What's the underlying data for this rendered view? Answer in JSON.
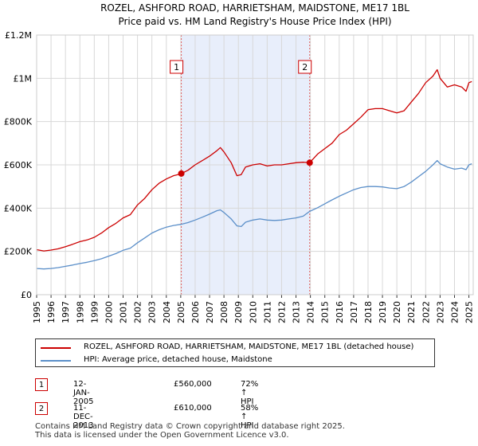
{
  "chart_data": {
    "type": "line",
    "title": "ROZEL, ASHFORD ROAD, HARRIETSHAM, MAIDSTONE, ME17 1BL",
    "subtitle": "Price paid vs. HM Land Registry's House Price Index (HPI)",
    "xlabel": "",
    "ylabel": "",
    "xlim": [
      1995.0,
      2025.3
    ],
    "ylim": [
      0,
      1200000
    ],
    "ytick_values": [
      0,
      200000,
      400000,
      600000,
      800000,
      1000000,
      1200000
    ],
    "ytick_labels": [
      "£0",
      "£200K",
      "£400K",
      "£600K",
      "£800K",
      "£1M",
      "£1.2M"
    ],
    "xtick_labels": [
      "1995",
      "1996",
      "1997",
      "1998",
      "1999",
      "2000",
      "2001",
      "2002",
      "2003",
      "2004",
      "2005",
      "2006",
      "2007",
      "2008",
      "2009",
      "2010",
      "2011",
      "2012",
      "2013",
      "2014",
      "2015",
      "2016",
      "2017",
      "2018",
      "2019",
      "2020",
      "2021",
      "2022",
      "2023",
      "2024",
      "2025"
    ],
    "grid": true,
    "shaded_region": [
      2005.04,
      2013.95
    ],
    "series": [
      {
        "name": "ROZEL, ASHFORD ROAD, HARRIETSHAM, MAIDSTONE, ME17 1BL (detached house)",
        "color": "#cc0000",
        "x": [
          1995.0,
          1995.5,
          1996.0,
          1996.5,
          1997.0,
          1997.5,
          1998.0,
          1998.5,
          1999.0,
          1999.5,
          2000.0,
          2000.5,
          2001.0,
          2001.5,
          2002.0,
          2002.5,
          2003.0,
          2003.5,
          2004.0,
          2004.5,
          2005.0,
          2005.04,
          2005.5,
          2006.0,
          2006.5,
          2007.0,
          2007.5,
          2007.75,
          2008.0,
          2008.5,
          2008.9,
          2009.2,
          2009.5,
          2010.0,
          2010.5,
          2011.0,
          2011.5,
          2012.0,
          2012.5,
          2013.0,
          2013.5,
          2013.95,
          2014.5,
          2015.0,
          2015.5,
          2016.0,
          2016.5,
          2017.0,
          2017.5,
          2018.0,
          2018.5,
          2019.0,
          2019.5,
          2020.0,
          2020.5,
          2021.0,
          2021.5,
          2022.0,
          2022.5,
          2022.8,
          2023.0,
          2023.5,
          2024.0,
          2024.5,
          2024.8,
          2025.0,
          2025.2
        ],
        "values": [
          208000,
          202000,
          206000,
          212000,
          222000,
          233000,
          245000,
          253000,
          265000,
          285000,
          310000,
          330000,
          355000,
          370000,
          415000,
          445000,
          485000,
          515000,
          535000,
          550000,
          558000,
          560000,
          575000,
          600000,
          620000,
          640000,
          665000,
          680000,
          660000,
          610000,
          550000,
          555000,
          590000,
          600000,
          605000,
          595000,
          600000,
          600000,
          605000,
          610000,
          612000,
          610000,
          650000,
          675000,
          700000,
          740000,
          760000,
          790000,
          820000,
          855000,
          860000,
          860000,
          850000,
          840000,
          850000,
          890000,
          930000,
          980000,
          1010000,
          1040000,
          1000000,
          960000,
          970000,
          960000,
          940000,
          980000,
          985000
        ]
      },
      {
        "name": "HPI: Average price, detached house, Maidstone",
        "color": "#5b8fc9",
        "x": [
          1995.0,
          1995.5,
          1996.0,
          1996.5,
          1997.0,
          1997.5,
          1998.0,
          1998.5,
          1999.0,
          1999.5,
          2000.0,
          2000.5,
          2001.0,
          2001.5,
          2002.0,
          2002.5,
          2003.0,
          2003.5,
          2004.0,
          2004.5,
          2005.0,
          2005.5,
          2006.0,
          2006.5,
          2007.0,
          2007.5,
          2007.75,
          2008.0,
          2008.5,
          2008.9,
          2009.2,
          2009.5,
          2010.0,
          2010.5,
          2011.0,
          2011.5,
          2012.0,
          2012.5,
          2013.0,
          2013.5,
          2013.95,
          2014.5,
          2015.0,
          2015.5,
          2016.0,
          2016.5,
          2017.0,
          2017.5,
          2018.0,
          2018.5,
          2019.0,
          2019.5,
          2020.0,
          2020.5,
          2021.0,
          2021.5,
          2022.0,
          2022.5,
          2022.8,
          2023.0,
          2023.5,
          2024.0,
          2024.5,
          2024.8,
          2025.0,
          2025.2
        ],
        "values": [
          121000,
          119000,
          121000,
          125000,
          131000,
          137000,
          144000,
          150000,
          157000,
          166000,
          178000,
          190000,
          205000,
          215000,
          240000,
          262000,
          285000,
          300000,
          312000,
          320000,
          325000,
          333000,
          345000,
          358000,
          372000,
          388000,
          392000,
          380000,
          350000,
          318000,
          315000,
          335000,
          345000,
          350000,
          345000,
          343000,
          345000,
          350000,
          355000,
          363000,
          385000,
          402000,
          420000,
          438000,
          455000,
          470000,
          485000,
          495000,
          500000,
          500000,
          498000,
          493000,
          490000,
          500000,
          520000,
          545000,
          570000,
          600000,
          620000,
          605000,
          590000,
          580000,
          585000,
          578000,
          600000,
          605000
        ]
      }
    ],
    "annotations": [
      {
        "label": "1",
        "x": 2005.04,
        "value": 560000
      },
      {
        "label": "2",
        "x": 2013.95,
        "value": 610000
      }
    ]
  },
  "legend": {
    "items": [
      {
        "label": "ROZEL, ASHFORD ROAD, HARRIETSHAM, MAIDSTONE, ME17 1BL (detached house)",
        "color": "#cc0000"
      },
      {
        "label": "HPI: Average price, detached house, Maidstone",
        "color": "#5b8fc9"
      }
    ]
  },
  "transactions": [
    {
      "num": "1",
      "date": "12-JAN-2005",
      "price": "£560,000",
      "hpi": "72% ↑ HPI"
    },
    {
      "num": "2",
      "date": "11-DEC-2013",
      "price": "£610,000",
      "hpi": "58% ↑ HPI"
    }
  ],
  "footer": {
    "line1": "Contains HM Land Registry data © Crown copyright and database right 2025.",
    "line2": "This data is licensed under the Open Government Licence v3.0."
  }
}
